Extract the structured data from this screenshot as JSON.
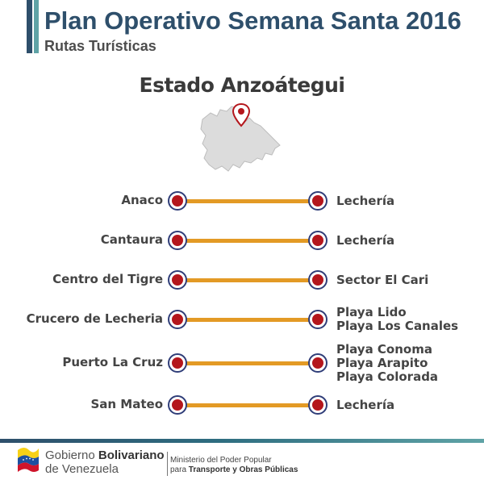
{
  "header": {
    "title": "Plan Operativo Semana Santa 2016",
    "subtitle": "Rutas Turísticas",
    "accent_colors": [
      "#2e4f6b",
      "#5fa3a6"
    ]
  },
  "state": {
    "name": "Estado Anzoátegui",
    "map_icon": "location-pin-icon"
  },
  "routes": [
    {
      "origin": "Anaco",
      "destinations": [
        "Lechería"
      ]
    },
    {
      "origin": "Cantaura",
      "destinations": [
        "Lechería"
      ]
    },
    {
      "origin": "Centro del Tigre",
      "destinations": [
        "Sector El Cari"
      ]
    },
    {
      "origin": "Crucero de Lecheria",
      "destinations": [
        "Playa Lido",
        "Playa Los Canales"
      ]
    },
    {
      "origin": "Puerto La Cruz",
      "destinations": [
        "Playa Conoma",
        "Playa Arapito",
        "Playa Colorada"
      ]
    },
    {
      "origin": "San Mateo",
      "destinations": [
        "Lechería"
      ]
    }
  ],
  "route_colors": {
    "line": "#e39a25",
    "dot": "#b4161c",
    "ring": "#2f3d78"
  },
  "footer": {
    "gov_line1_a": "Gobierno ",
    "gov_line1_b": "Bolivariano",
    "gov_line2": "de Venezuela",
    "ministry_line1": "Ministerio del Poder Popular",
    "ministry_line2_a": "para ",
    "ministry_line2_b": "Transporte y Obras Públicas"
  }
}
